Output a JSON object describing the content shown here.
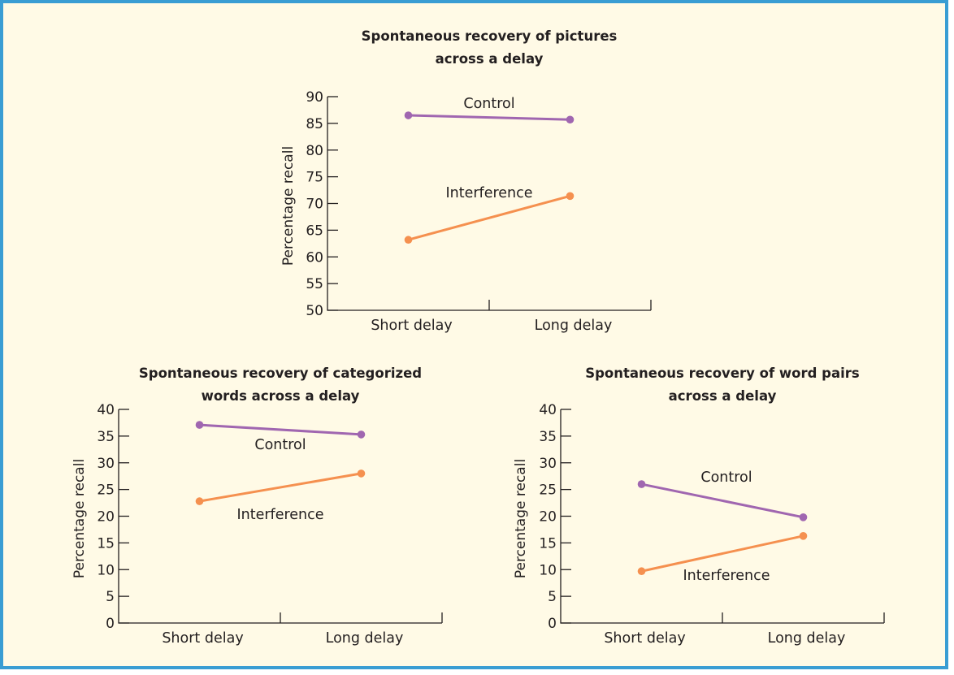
{
  "chart_data": [
    {
      "type": "line",
      "title": [
        "Spontaneous recovery of pictures",
        "across a delay"
      ],
      "xlabel": "",
      "ylabel": "Percentage recall",
      "categories": [
        "Short delay",
        "Long delay"
      ],
      "ylim": [
        50,
        90
      ],
      "yticks": [
        50,
        55,
        60,
        65,
        70,
        75,
        80,
        85,
        90
      ],
      "grid": false,
      "series": [
        {
          "name": "Control",
          "color": "#a066b0",
          "values": [
            86.5,
            85.7
          ]
        },
        {
          "name": "Interference",
          "color": "#f5904f",
          "values": [
            63.2,
            71.4
          ]
        }
      ]
    },
    {
      "type": "line",
      "title": [
        "Spontaneous recovery of categorized",
        "words across a delay"
      ],
      "xlabel": "",
      "ylabel": "Percentage recall",
      "categories": [
        "Short delay",
        "Long delay"
      ],
      "ylim": [
        0,
        40
      ],
      "yticks": [
        0,
        5,
        10,
        15,
        20,
        25,
        30,
        35,
        40
      ],
      "grid": false,
      "series": [
        {
          "name": "Control",
          "color": "#a066b0",
          "values": [
            37.1,
            35.3
          ]
        },
        {
          "name": "Interference",
          "color": "#f5904f",
          "values": [
            22.8,
            28.0
          ]
        }
      ]
    },
    {
      "type": "line",
      "title": [
        "Spontaneous recovery of word pairs",
        "across a delay"
      ],
      "xlabel": "",
      "ylabel": "Percentage recall",
      "categories": [
        "Short delay",
        "Long delay"
      ],
      "ylim": [
        0,
        40
      ],
      "yticks": [
        0,
        5,
        10,
        15,
        20,
        25,
        30,
        35,
        40
      ],
      "grid": false,
      "series": [
        {
          "name": "Control",
          "color": "#a066b0",
          "values": [
            26.0,
            19.8
          ]
        },
        {
          "name": "Interference",
          "color": "#f5904f",
          "values": [
            9.7,
            16.3
          ]
        }
      ]
    }
  ],
  "colors": {
    "frame_border": "#3a9dd3",
    "background": "#fffae6",
    "text": "#231f20"
  }
}
